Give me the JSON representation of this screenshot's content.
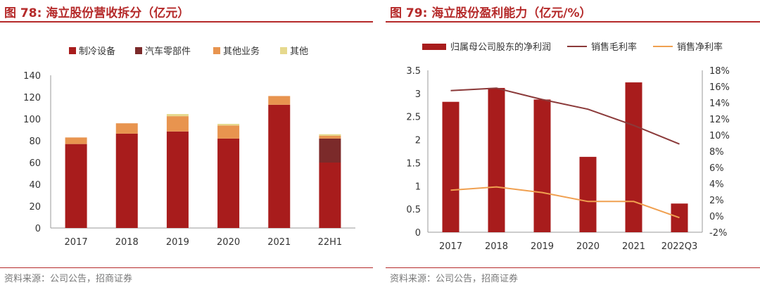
{
  "chart_data": [
    {
      "type": "bar",
      "stacked": true,
      "title": "图 78:  海立股份营收拆分（亿元）",
      "source": "资料来源：公司公告，招商证券",
      "categories": [
        "2017",
        "2018",
        "2019",
        "2020",
        "2021",
        "22H1"
      ],
      "series": [
        {
          "name": "制冷设备",
          "color": "#a81c1c",
          "values": [
            77,
            86.5,
            88.5,
            82,
            113,
            60
          ]
        },
        {
          "name": "汽车零部件",
          "color": "#7b2a2a",
          "values": [
            0,
            0,
            0,
            0,
            0,
            22
          ]
        },
        {
          "name": "其他业务",
          "color": "#e8944f",
          "values": [
            6,
            9.5,
            14,
            12,
            8,
            2.5
          ]
        },
        {
          "name": "其他",
          "color": "#e6d98e",
          "values": [
            0,
            0,
            2,
            1.5,
            0,
            1.5
          ]
        }
      ],
      "ylim": [
        0,
        140
      ],
      "yticks": [
        "0",
        "20",
        "40",
        "60",
        "80",
        "100",
        "120",
        "140"
      ],
      "legend_position": "top"
    },
    {
      "type": "bar+line",
      "title": "图 79:  海立股份盈利能力（亿元/%）",
      "source": "资料来源：公司公告，招商证券",
      "categories": [
        "2017",
        "2018",
        "2019",
        "2020",
        "2021",
        "2022Q3"
      ],
      "bar_series": {
        "name": "归属母公司股东的净利润",
        "color": "#a81c1c",
        "values": [
          2.82,
          3.12,
          2.87,
          1.63,
          3.24,
          0.62
        ]
      },
      "line_series": [
        {
          "name": "销售毛利率",
          "color": "#8b3a3a",
          "values": [
            15.5,
            15.8,
            14.4,
            13.2,
            11.2,
            8.9
          ]
        },
        {
          "name": "销售净利率",
          "color": "#f0a050",
          "values": [
            3.2,
            3.6,
            2.9,
            1.8,
            1.8,
            -0.2
          ]
        }
      ],
      "ylim_left": [
        0,
        3.5
      ],
      "yticks_left": [
        "0",
        "0.5",
        "1",
        "1.5",
        "2",
        "2.5",
        "3",
        "3.5"
      ],
      "ylim_right": [
        -2,
        18
      ],
      "yticks_right": [
        "-2%",
        "0%",
        "2%",
        "4%",
        "6%",
        "8%",
        "10%",
        "12%",
        "14%",
        "16%",
        "18%"
      ],
      "legend_position": "top"
    }
  ]
}
